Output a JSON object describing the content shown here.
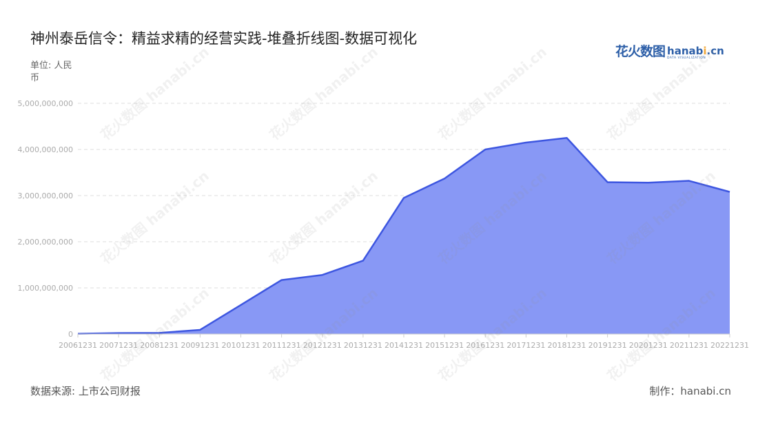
{
  "title": "神州泰岳信令：精益求精的经营实践-堆叠折线图-数据可视化",
  "logo": {
    "cn": "花火数图",
    "en_prefix": "hanab",
    "en_dot": "i",
    "en_suffix": ".cn",
    "sub": "DATA VISUALIZATION"
  },
  "unit_label": "单位: 人民币",
  "source_label": "数据来源: 上市公司财报",
  "maker_label": "制作：hanabi.cn",
  "watermark_text": "花火数图 hanabi.cn",
  "colors": {
    "line": "#3d56e0",
    "fill": "#8898f5",
    "grid": "#dddddd",
    "axis_text": "#aaaaaa"
  },
  "chart_data": {
    "type": "area",
    "title": "神州泰岳信令：精益求精的经营实践-堆叠折线图-数据可视化",
    "xlabel": "",
    "ylabel": "单位: 人民币",
    "categories": [
      "20061231",
      "20071231",
      "20081231",
      "20091231",
      "20101231",
      "20111231",
      "20121231",
      "20131231",
      "20141231",
      "20151231",
      "20161231",
      "20171231",
      "20181231",
      "20191231",
      "20201231",
      "20211231",
      "20221231"
    ],
    "series": [
      {
        "values": [
          5000000,
          20000000,
          25000000,
          90000000,
          630000000,
          1170000000,
          1280000000,
          1590000000,
          2950000000,
          3370000000,
          4000000000,
          4150000000,
          4250000000,
          3290000000,
          3280000000,
          3320000000,
          3080000000
        ]
      }
    ],
    "ylim": [
      0,
      5000000000
    ],
    "yticks": [
      0,
      1000000000,
      2000000000,
      3000000000,
      4000000000,
      5000000000
    ],
    "ytick_labels": [
      "0",
      "1,000,000,000",
      "2,000,000,000",
      "3,000,000,000",
      "4,000,000,000",
      "5,000,000,000"
    ],
    "grid": true,
    "legend": "none"
  }
}
